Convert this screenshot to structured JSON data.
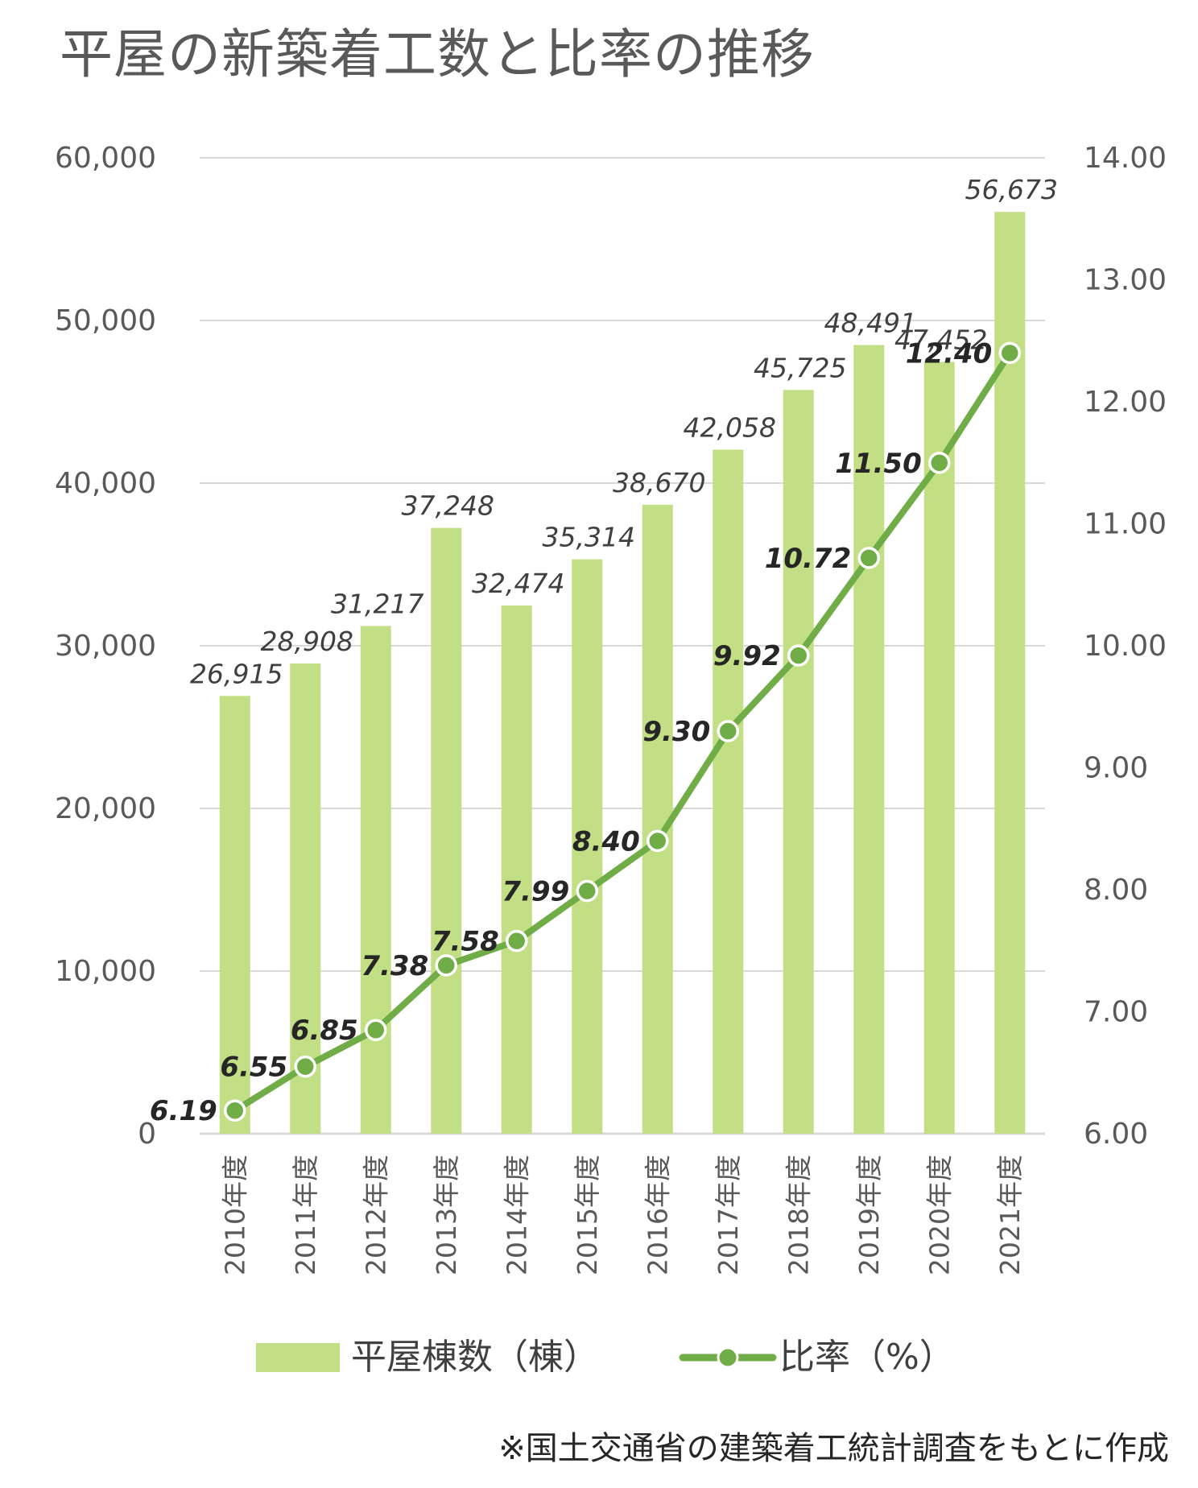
{
  "title": "平屋の新築着工数と比率の推移",
  "footnote": "※国土交通省の建築着工統計調査をもとに作成",
  "colors": {
    "bar": "#c3df85",
    "line": "#70ad47",
    "grid": "#d9d9d9",
    "text": "#595959"
  },
  "chart_data": {
    "type": "bar",
    "categories": [
      "2010年度",
      "2011年度",
      "2012年度",
      "2013年度",
      "2014年度",
      "2015年度",
      "2016年度",
      "2017年度",
      "2018年度",
      "2019年度",
      "2020年度",
      "2021年度"
    ],
    "series": [
      {
        "name": "平屋棟数（棟）",
        "type": "bar",
        "axis": "left",
        "values": [
          26915,
          28908,
          31217,
          37248,
          32474,
          35314,
          38670,
          42058,
          45725,
          48491,
          47452,
          56673
        ],
        "labels": [
          "26,915",
          "28,908",
          "31,217",
          "37,248",
          "32,474",
          "35,314",
          "38,670",
          "42,058",
          "45,725",
          "48,491",
          "47,452",
          "56,673"
        ]
      },
      {
        "name": "比率（%）",
        "type": "line",
        "axis": "right",
        "values": [
          6.19,
          6.55,
          6.85,
          7.38,
          7.58,
          7.99,
          8.4,
          9.3,
          9.92,
          10.72,
          11.5,
          12.4
        ],
        "labels": [
          "6.19",
          "6.55",
          "6.85",
          "7.38",
          "7.58",
          "7.99",
          "8.40",
          "9.30",
          "9.92",
          "10.72",
          "11.50",
          "12.40"
        ]
      }
    ],
    "y_left": {
      "range": [
        0,
        60000
      ],
      "ticks": [
        0,
        10000,
        20000,
        30000,
        40000,
        50000,
        60000
      ],
      "tick_labels": [
        "0",
        "10,000",
        "20,000",
        "30,000",
        "40,000",
        "50,000",
        "60,000"
      ]
    },
    "y_right": {
      "range": [
        6,
        14
      ],
      "ticks": [
        6,
        7,
        8,
        9,
        10,
        11,
        12,
        13,
        14
      ],
      "tick_labels": [
        "6.00",
        "7.00",
        "8.00",
        "9.00",
        "10.00",
        "11.00",
        "12.00",
        "13.00",
        "14.00"
      ]
    },
    "grid": true,
    "legend_position": "bottom"
  }
}
